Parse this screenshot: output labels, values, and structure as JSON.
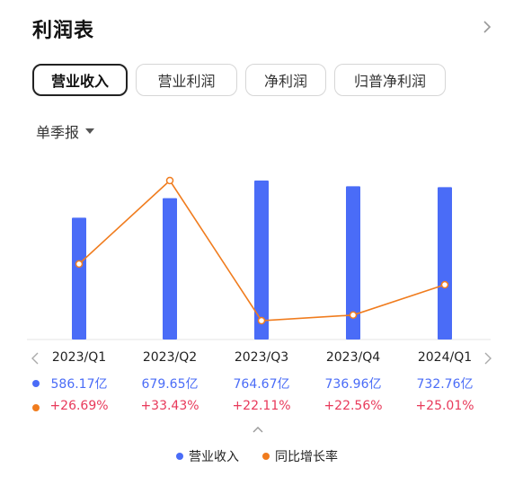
{
  "header": {
    "title": "利润表"
  },
  "tabs": [
    {
      "label": "营业收入",
      "active": true
    },
    {
      "label": "营业利润",
      "active": false
    },
    {
      "label": "净利润",
      "active": false
    },
    {
      "label": "归普净利润",
      "active": false
    }
  ],
  "period_selector": {
    "label": "单季报"
  },
  "colors": {
    "bar": "#4a6cf7",
    "line": "#f07c1e",
    "negative_text": "#e8395a"
  },
  "chart_data": {
    "type": "bar",
    "categories": [
      "2023/Q1",
      "2023/Q2",
      "2023/Q3",
      "2023/Q4",
      "2024/Q1"
    ],
    "series": [
      {
        "name": "营业收入",
        "type": "bar",
        "values": [
          586.17,
          679.65,
          764.67,
          736.96,
          732.76
        ],
        "labels": [
          "586.17亿",
          "679.65亿",
          "764.67亿",
          "736.96亿",
          "732.76亿"
        ]
      },
      {
        "name": "同比增长率",
        "type": "line",
        "values": [
          26.69,
          33.43,
          22.11,
          22.56,
          25.01
        ],
        "labels": [
          "+26.69%",
          "+33.43%",
          "+22.11%",
          "+22.56%",
          "+25.01%"
        ]
      }
    ],
    "legend": "bottom-center"
  }
}
